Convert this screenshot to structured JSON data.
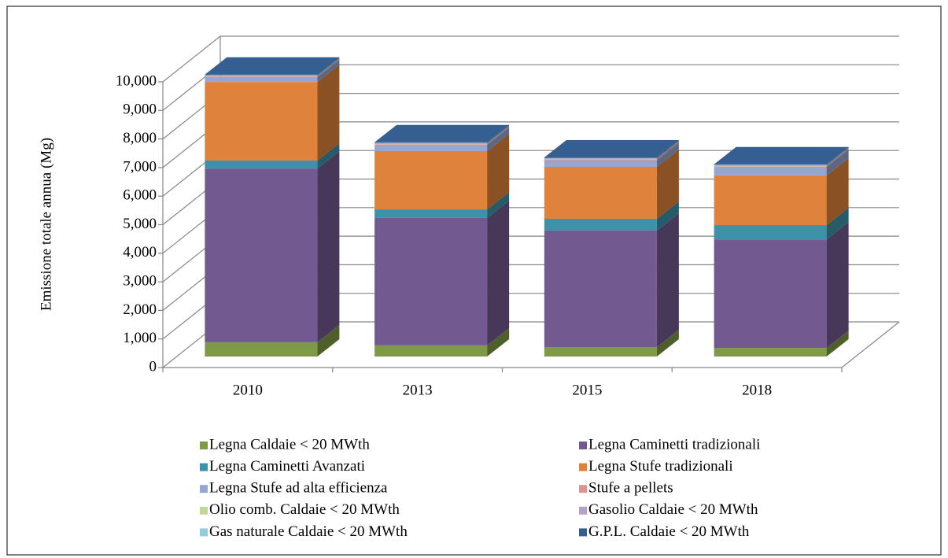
{
  "chart_data": {
    "type": "bar3d_stacked",
    "y_label": "Emissione totale annua (Mg)",
    "categories": [
      "2010",
      "2013",
      "2015",
      "2018"
    ],
    "ylim": [
      0,
      10000
    ],
    "yticks": [
      0,
      {
        "value": 1000,
        "label": "1,000"
      },
      {
        "value": 2000,
        "label": "2,000"
      },
      {
        "value": 3000,
        "label": "3,000"
      },
      {
        "value": 4000,
        "label": "4,000"
      },
      {
        "value": 5000,
        "label": "5,000"
      },
      {
        "value": 6000,
        "label": "6,000"
      },
      {
        "value": 7000,
        "label": "7,000"
      },
      {
        "value": 8000,
        "label": "8,000"
      },
      {
        "value": 9000,
        "label": "9,000"
      },
      {
        "value": 10000,
        "label": "10,000"
      }
    ],
    "grid": true,
    "series": [
      {
        "name": "Legna Caldaie < 20 MWth",
        "color": "#7f9a47",
        "values": [
          500,
          390,
          330,
          300
        ]
      },
      {
        "name": "Legna Caminetti tradizionali",
        "color": "#72598f",
        "values": [
          6080,
          4460,
          4080,
          3800
        ]
      },
      {
        "name": "Legna Caminetti Avanzati",
        "color": "#3d92aa",
        "values": [
          280,
          300,
          410,
          500
        ]
      },
      {
        "name": "Legna Stufe tradizionali",
        "color": "#df833c",
        "values": [
          2750,
          2040,
          1820,
          1740
        ]
      },
      {
        "name": "Legna Stufe ad alta efficienza",
        "color": "#95a6d3",
        "values": [
          170,
          220,
          220,
          300
        ]
      },
      {
        "name": "Stufe a pellets",
        "color": "#d99594",
        "values": [
          20,
          20,
          40,
          20
        ]
      },
      {
        "name": "Olio comb. Caldaie < 20 MWth",
        "color": "#c3d69b",
        "values": [
          10,
          10,
          10,
          10
        ]
      },
      {
        "name": "Gasolio Caldaie < 20 MWth",
        "color": "#b3a2c7",
        "values": [
          30,
          30,
          30,
          30
        ]
      },
      {
        "name": "Gas naturale Caldaie < 20 MWth",
        "color": "#93cddd",
        "values": [
          10,
          10,
          10,
          10
        ]
      },
      {
        "name": "G.P.L. Caldaie < 20 MWth",
        "color": "#355f91",
        "values": [
          20,
          20,
          20,
          20
        ]
      }
    ]
  }
}
